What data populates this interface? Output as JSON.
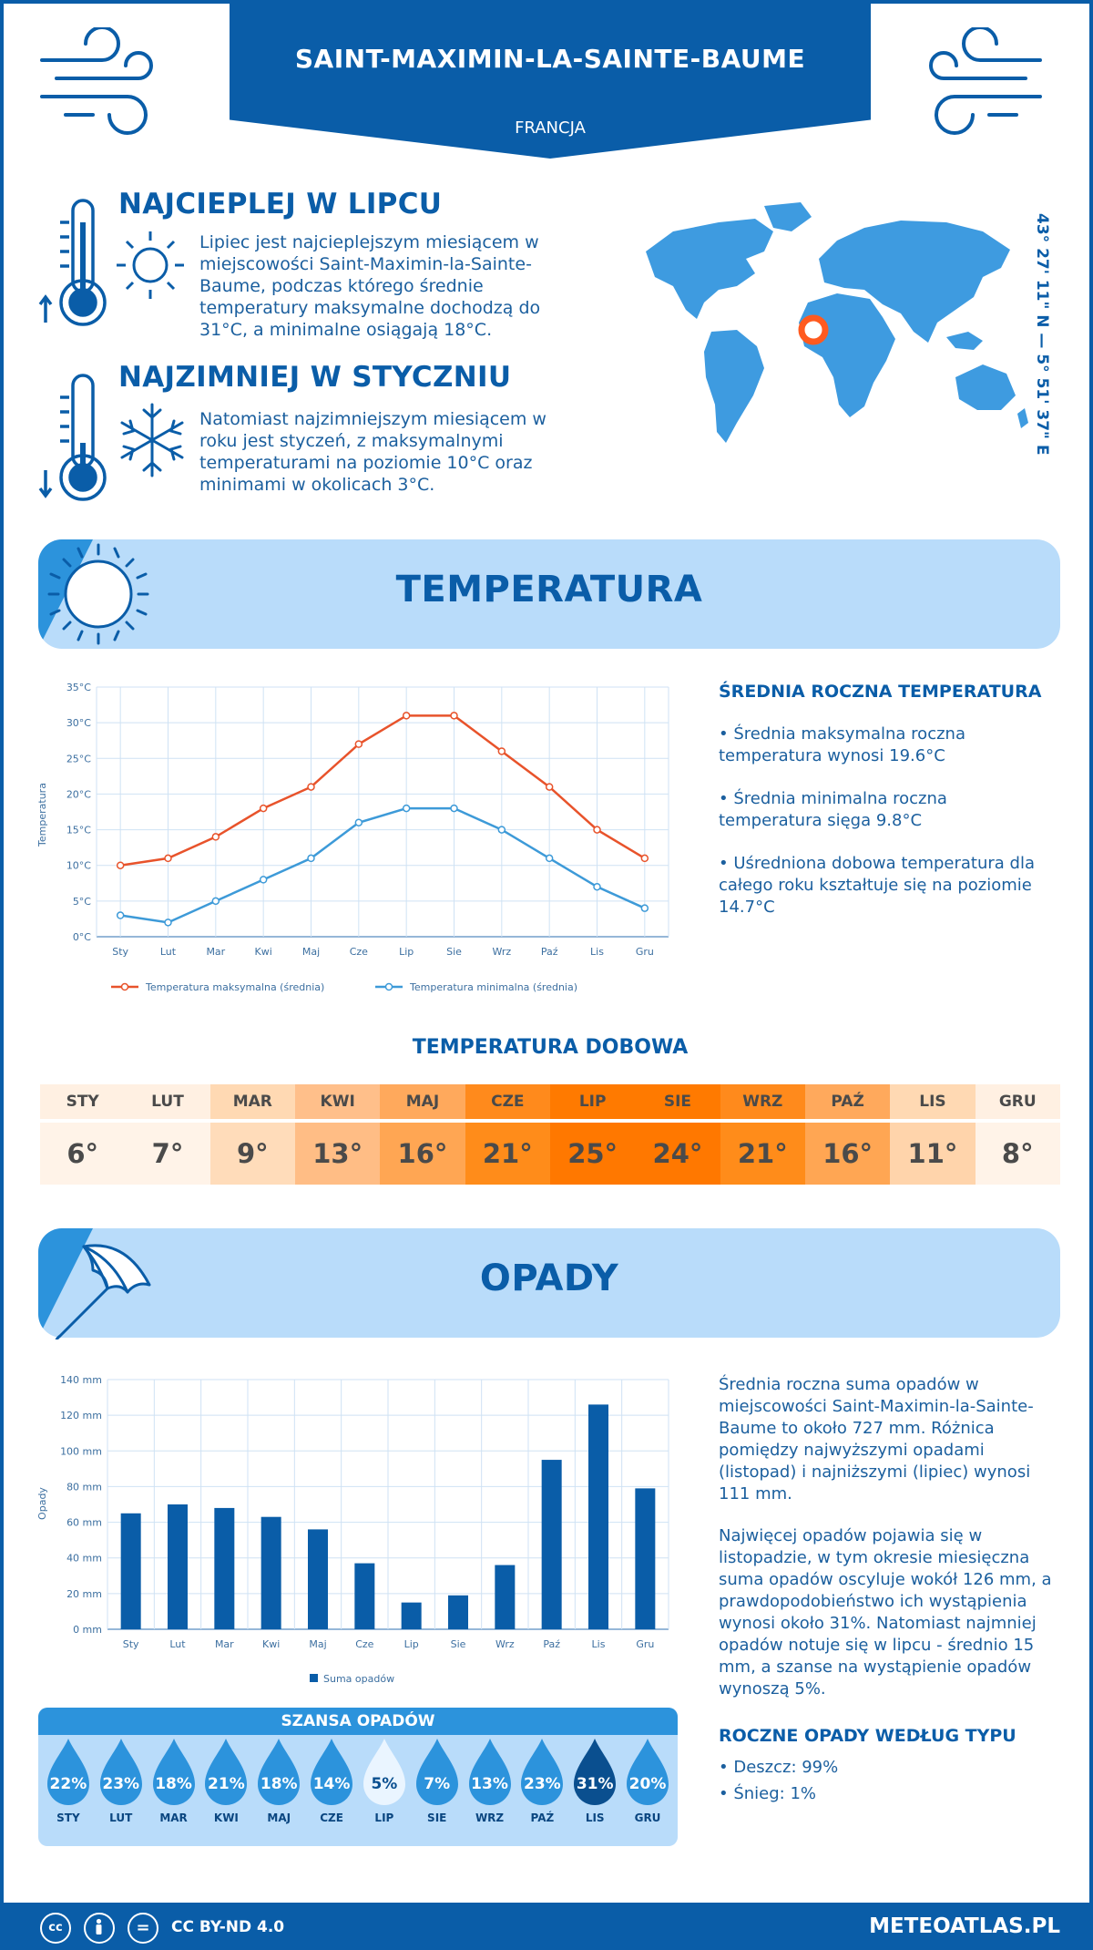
{
  "header": {
    "title": "SAINT-MAXIMIN-LA-SAINTE-BAUME",
    "subtitle": "FRANCJA"
  },
  "warmest": {
    "heading": "NAJCIEPLEJ W LIPCU",
    "text": "Lipiec jest najcieplejszym miesiącem w miejscowości Saint-Maximin-la-Sainte-Baume, podczas którego średnie temperatury maksymalne dochodzą do 31°C, a minimalne osiągają 18°C."
  },
  "coldest": {
    "heading": "NAJZIMNIEJ W STYCZNIU",
    "text": "Natomiast najzimniejszym miesiącem w roku jest styczeń, z maksymalnymi temperaturami na poziomie 10°C oraz minimami w okolicach 3°C."
  },
  "coordinates": "43° 27' 11\" N — 5° 51' 37\" E",
  "temperature_section": {
    "title": "TEMPERATURA",
    "side_title": "ŚREDNIA ROCZNA TEMPERATURA",
    "bullets": [
      "• Średnia maksymalna roczna temperatura wynosi 19.6°C",
      "• Średnia minimalna roczna temperatura sięga 9.8°C",
      "• Uśredniona dobowa temperatura dla całego roku kształtuje się na poziomie 14.7°C"
    ]
  },
  "precip_section": {
    "title": "OPADY",
    "paragraph1": "Średnia roczna suma opadów w miejscowości Saint-Maximin-la-Sainte-Baume to około 727 mm. Różnica pomiędzy najwyższymi opadami (listopad) i najniższymi (lipiec) wynosi 111 mm.",
    "paragraph2": "Najwięcej opadów pojawia się w listopadzie, w tym okresie miesięczna suma opadów oscyluje wokół 126 mm, a prawdopodobieństwo ich wystąpienia wynosi około 31%. Natomiast najmniej opadów notuje się w lipcu - średnio 15 mm, a szanse na wystąpienie opadów wynoszą 5%.",
    "type_title": "ROCZNE OPADY WEDŁUG TYPU",
    "types": [
      "• Deszcz: 99%",
      "• Śnieg: 1%"
    ]
  },
  "chart_data": [
    {
      "type": "line",
      "categories": [
        "Sty",
        "Lut",
        "Mar",
        "Kwi",
        "Maj",
        "Cze",
        "Lip",
        "Sie",
        "Wrz",
        "Paź",
        "Lis",
        "Gru"
      ],
      "series": [
        {
          "name": "Temperatura maksymalna (średnia)",
          "values": [
            10,
            11,
            14,
            18,
            21,
            27,
            31,
            31,
            26,
            21,
            15,
            11
          ],
          "color": "#e8532b"
        },
        {
          "name": "Temperatura minimalna (średnia)",
          "values": [
            3,
            2,
            5,
            8,
            11,
            16,
            18,
            18,
            15,
            11,
            7,
            4
          ],
          "color": "#3d9ad8"
        }
      ],
      "ylabel": "Temperatura",
      "ylim": [
        0,
        35
      ],
      "yticks": [
        "0°C",
        "5°C",
        "10°C",
        "15°C",
        "20°C",
        "25°C",
        "30°C",
        "35°C"
      ],
      "grid": true,
      "legend": "bottom"
    },
    {
      "type": "bar",
      "categories": [
        "Sty",
        "Lut",
        "Mar",
        "Kwi",
        "Maj",
        "Cze",
        "Lip",
        "Sie",
        "Wrz",
        "Paź",
        "Lis",
        "Gru"
      ],
      "series": [
        {
          "name": "Suma opadów",
          "values": [
            65,
            70,
            68,
            63,
            56,
            37,
            15,
            19,
            36,
            95,
            126,
            79
          ],
          "color": "#0a5da8"
        }
      ],
      "ylabel": "Opady",
      "ylim": [
        0,
        140
      ],
      "yticks": [
        "0 mm",
        "20 mm",
        "40 mm",
        "60 mm",
        "80 mm",
        "100 mm",
        "120 mm",
        "140 mm"
      ],
      "grid": true,
      "legend": "bottom"
    }
  ],
  "daily_temp": {
    "title": "TEMPERATURA DOBOWA",
    "months": [
      "STY",
      "LUT",
      "MAR",
      "KWI",
      "MAJ",
      "CZE",
      "LIP",
      "SIE",
      "WRZ",
      "PAŹ",
      "LIS",
      "GRU"
    ],
    "values": [
      "6°",
      "7°",
      "9°",
      "13°",
      "16°",
      "21°",
      "25°",
      "24°",
      "21°",
      "16°",
      "11°",
      "8°"
    ],
    "head_colors": [
      "#fff0e2",
      "#fff0e2",
      "#ffd9b3",
      "#ffbf8a",
      "#ffa95c",
      "#ff8a1c",
      "#ff7a00",
      "#ff7a00",
      "#ff8a1c",
      "#ffa95c",
      "#ffd9b3",
      "#fff0e2"
    ],
    "cell_colors": [
      "#fff3e8",
      "#fff3e8",
      "#ffdcba",
      "#ffbd85",
      "#ffa653",
      "#ff8c1a",
      "#ff7800",
      "#ff7800",
      "#ff8c1a",
      "#ffa653",
      "#ffd4ab",
      "#fff3e8"
    ]
  },
  "precip_chance": {
    "title": "SZANSA OPADÓW",
    "months": [
      "STY",
      "LUT",
      "MAR",
      "KWI",
      "MAJ",
      "CZE",
      "LIP",
      "SIE",
      "WRZ",
      "PAŹ",
      "LIS",
      "GRU"
    ],
    "values": [
      "22%",
      "23%",
      "18%",
      "21%",
      "18%",
      "14%",
      "5%",
      "7%",
      "13%",
      "23%",
      "31%",
      "20%"
    ],
    "drop_colors": [
      "#2c93dc",
      "#2c93dc",
      "#2c93dc",
      "#2c93dc",
      "#2c93dc",
      "#2c93dc",
      "#eaf5ff",
      "#2c93dc",
      "#2c93dc",
      "#2c93dc",
      "#0a4f8f",
      "#2c93dc"
    ]
  },
  "footer": {
    "license": "CC BY-ND 4.0",
    "brand": "METEOATLAS.PL",
    "cc_label": "cc",
    "eq_label": "="
  }
}
